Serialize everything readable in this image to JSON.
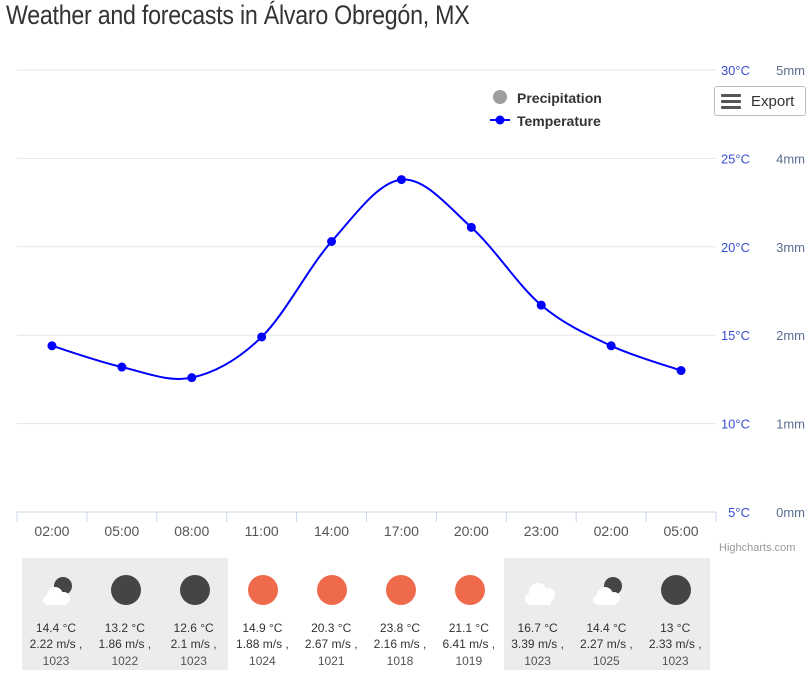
{
  "page": {
    "title": "Weather and forecasts in Álvaro Obregón, MX"
  },
  "chart_data": {
    "type": "line",
    "categories": [
      "02:00",
      "05:00",
      "08:00",
      "11:00",
      "14:00",
      "17:00",
      "20:00",
      "23:00",
      "02:00",
      "05:00"
    ],
    "series": [
      {
        "name": "Precipitation",
        "values": [
          0,
          0,
          0,
          0,
          0,
          0,
          0,
          0,
          0,
          0
        ],
        "color": "#9e9e9e",
        "axis": "right"
      },
      {
        "name": "Temperature",
        "values": [
          14.4,
          13.2,
          12.6,
          14.9,
          20.3,
          23.8,
          21.1,
          16.7,
          14.4,
          13
        ],
        "color": "#0000ff",
        "axis": "left"
      }
    ],
    "y_temperature": {
      "ticks": [
        "30°C",
        "25°C",
        "20°C",
        "15°C",
        "10°C",
        "5°C"
      ],
      "ylim": [
        5,
        30
      ]
    },
    "y_precipitation": {
      "ticks": [
        "5mm",
        "4mm",
        "3mm",
        "2mm",
        "1mm",
        "0mm"
      ],
      "ylim": [
        0,
        5
      ]
    },
    "legend_position": "top-right",
    "grid": true
  },
  "toolbar": {
    "export_label": "Export"
  },
  "credits": "Highcharts.com",
  "colors": {
    "line": "#0000ff",
    "day_sun": "#ef6a4a",
    "night_moon": "#454545",
    "cloud": "#e6e6e6",
    "night_bg": "#ececec"
  },
  "forecast": [
    {
      "icon": "night-partly-cloudy-icon",
      "temp": "14.4 °C",
      "wind": "2.22 m/s ,",
      "pressure": "1023"
    },
    {
      "icon": "moon-icon",
      "temp": "13.2 °C",
      "wind": "1.86 m/s ,",
      "pressure": "1022"
    },
    {
      "icon": "moon-icon",
      "temp": "12.6 °C",
      "wind": "2.1 m/s ,",
      "pressure": "1023"
    },
    {
      "icon": "sun-icon",
      "temp": "14.9 °C",
      "wind": "1.88 m/s ,",
      "pressure": "1024"
    },
    {
      "icon": "sun-icon",
      "temp": "20.3 °C",
      "wind": "2.67 m/s ,",
      "pressure": "1021"
    },
    {
      "icon": "sun-icon",
      "temp": "23.8 °C",
      "wind": "2.16 m/s ,",
      "pressure": "1018"
    },
    {
      "icon": "sun-icon",
      "temp": "21.1 °C",
      "wind": "6.41 m/s ,",
      "pressure": "1019"
    },
    {
      "icon": "cloud-icon",
      "temp": "16.7 °C",
      "wind": "3.39 m/s ,",
      "pressure": "1023"
    },
    {
      "icon": "night-partly-cloudy-icon",
      "temp": "14.4 °C",
      "wind": "2.27 m/s ,",
      "pressure": "1025"
    },
    {
      "icon": "moon-icon",
      "temp": "13 °C",
      "wind": "2.33 m/s ,",
      "pressure": "1023"
    }
  ]
}
